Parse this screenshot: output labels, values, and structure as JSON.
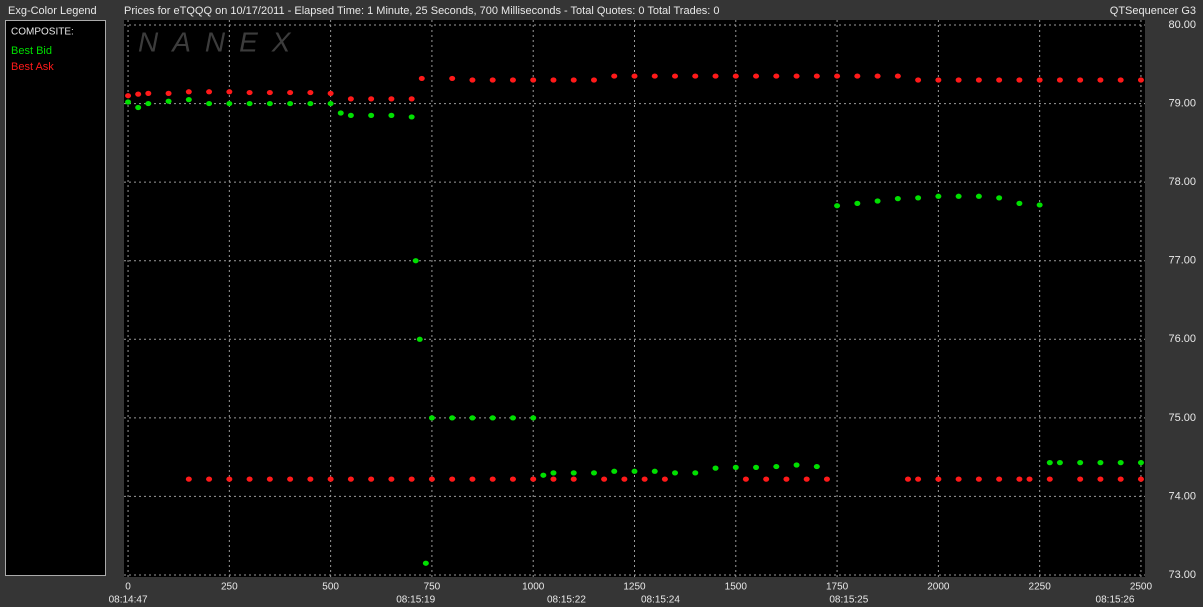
{
  "chart_data": {
    "type": "scatter",
    "panel_title": "Exg-Color Legend",
    "title": "Prices for  eTQQQ  on  10/17/2011  -  Elapsed Time: 1 Minute, 25 Seconds, 700 Milliseconds  -  Total Quotes: 0  Total Trades: 0",
    "app_name": "QTSequencer G3",
    "legend_heading": "COMPOSITE:",
    "watermark": "NANEX",
    "xlim": [
      -10,
      2510
    ],
    "xticks": [
      0,
      250,
      500,
      750,
      1000,
      1250,
      1500,
      1750,
      2000,
      2250,
      2500
    ],
    "ylim": [
      73,
      80
    ],
    "yticks": [
      {
        "value": 73,
        "label": "73.00"
      },
      {
        "value": 74,
        "label": "74.00"
      },
      {
        "value": 75,
        "label": "75.00"
      },
      {
        "value": 76,
        "label": "76.00"
      },
      {
        "value": 77,
        "label": "77.00"
      },
      {
        "value": 78,
        "label": "78.00"
      },
      {
        "value": 79,
        "label": "79.00"
      },
      {
        "value": 80,
        "label": "80.00"
      }
    ],
    "time_labels": [
      {
        "value": 0,
        "label": "08:14:47"
      },
      {
        "value": 710,
        "label": "08:15:19"
      },
      {
        "value": 1082,
        "label": "08:15:22"
      },
      {
        "value": 1314,
        "label": "08:15:24"
      },
      {
        "value": 1779,
        "label": "08:15:25"
      },
      {
        "value": 2436,
        "label": "08:15:26"
      }
    ],
    "grid": true,
    "series": [
      {
        "name": "Best Bid",
        "color": "#00e000",
        "x": [
          0,
          25,
          50,
          100,
          150,
          200,
          250,
          300,
          350,
          400,
          450,
          500,
          525,
          550,
          600,
          650,
          700,
          710,
          720,
          735,
          750,
          800,
          850,
          900,
          950,
          1000,
          1025,
          1050,
          1100,
          1150,
          1200,
          1250,
          1300,
          1350,
          1400,
          1450,
          1500,
          1550,
          1600,
          1650,
          1700,
          1750,
          1800,
          1850,
          1900,
          1950,
          2000,
          2050,
          2100,
          2150,
          2200,
          2250,
          2275,
          2300,
          2350,
          2400,
          2450,
          2500
        ],
        "values": [
          79.02,
          78.95,
          79.0,
          79.03,
          79.05,
          79.0,
          79.0,
          79.0,
          79.0,
          79.0,
          79.0,
          79.0,
          78.88,
          78.85,
          78.85,
          78.85,
          78.83,
          77.0,
          76.0,
          73.15,
          75.0,
          75.0,
          75.0,
          75.0,
          75.0,
          75.0,
          74.27,
          74.3,
          74.3,
          74.3,
          74.32,
          74.32,
          74.32,
          74.3,
          74.3,
          74.36,
          74.37,
          74.37,
          74.38,
          74.4,
          74.38,
          77.7,
          77.73,
          77.76,
          77.79,
          77.8,
          77.82,
          77.82,
          77.82,
          77.8,
          77.73,
          77.71,
          74.43,
          74.43,
          74.43,
          74.43,
          74.43,
          74.43
        ]
      },
      {
        "name": "Best Ask",
        "color": "#ff1a1a",
        "x": [
          0,
          25,
          50,
          100,
          150,
          200,
          250,
          300,
          350,
          400,
          450,
          500,
          550,
          600,
          650,
          700,
          725,
          800,
          850,
          900,
          950,
          1000,
          1050,
          1100,
          1150,
          1200,
          1250,
          1300,
          1350,
          1400,
          1450,
          1500,
          1550,
          1600,
          1650,
          1700,
          1750,
          1800,
          1850,
          1900,
          1950,
          2000,
          2050,
          2100,
          2150,
          2200,
          2250,
          2300,
          2350,
          2400,
          2450,
          2500,
          150,
          200,
          250,
          300,
          350,
          400,
          450,
          500,
          550,
          600,
          650,
          700,
          750,
          800,
          850,
          900,
          950,
          1000,
          1050,
          1100,
          1175,
          1225,
          1275,
          1325,
          1525,
          1575,
          1625,
          1675,
          1725,
          1925,
          1950,
          2000,
          2050,
          2100,
          2150,
          2200,
          2225,
          2275,
          2350,
          2400,
          2450,
          2500
        ],
        "values": [
          79.1,
          79.12,
          79.13,
          79.13,
          79.15,
          79.15,
          79.15,
          79.14,
          79.14,
          79.14,
          79.14,
          79.13,
          79.06,
          79.06,
          79.06,
          79.06,
          79.32,
          79.32,
          79.3,
          79.3,
          79.3,
          79.3,
          79.3,
          79.3,
          79.3,
          79.35,
          79.35,
          79.35,
          79.35,
          79.35,
          79.35,
          79.35,
          79.35,
          79.35,
          79.35,
          79.35,
          79.35,
          79.35,
          79.35,
          79.35,
          79.3,
          79.3,
          79.3,
          79.3,
          79.3,
          79.3,
          79.3,
          79.3,
          79.3,
          79.3,
          79.3,
          79.3,
          74.22,
          74.22,
          74.22,
          74.22,
          74.22,
          74.22,
          74.22,
          74.22,
          74.22,
          74.22,
          74.22,
          74.22,
          74.22,
          74.22,
          74.22,
          74.22,
          74.22,
          74.22,
          74.22,
          74.22,
          74.22,
          74.22,
          74.22,
          74.22,
          74.22,
          74.22,
          74.22,
          74.22,
          74.22,
          74.22,
          74.22,
          74.22,
          74.22,
          74.22,
          74.22,
          74.22,
          74.22,
          74.22,
          74.22,
          74.22,
          74.22,
          74.22
        ]
      }
    ]
  }
}
